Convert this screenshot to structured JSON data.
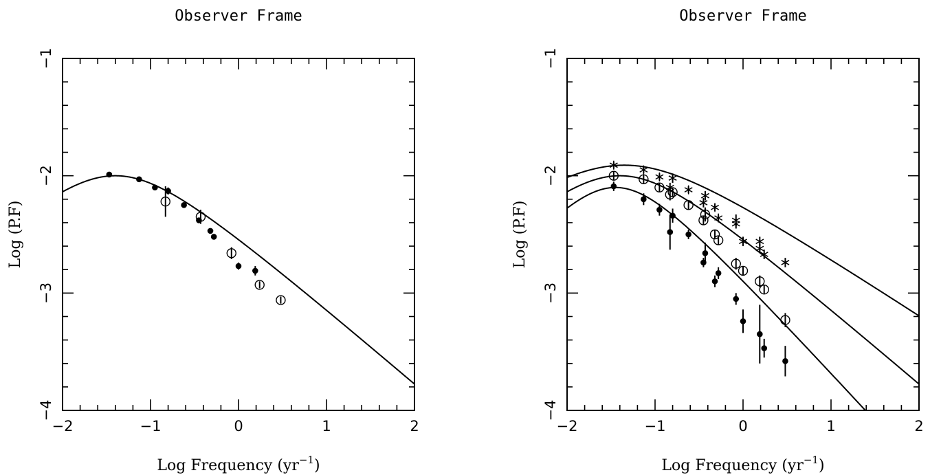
{
  "chart_data": [
    {
      "type": "scatter",
      "title": "Observer Frame",
      "xlabel_main": "Log Frequency (yr",
      "xlabel_sup": "−1",
      "xlabel_close": ")",
      "ylabel": "Log (P.F)",
      "xlim": [
        -2,
        2
      ],
      "ylim": [
        -4,
        -1
      ],
      "xticks": [
        -2,
        -1,
        0,
        1,
        2
      ],
      "xtick_labels": [
        "−2",
        "−1",
        "0",
        "1",
        "2"
      ],
      "yticks": [
        -4,
        -3,
        -2,
        -1
      ],
      "ytick_labels": [
        "−4",
        "−3",
        "−2",
        "−1"
      ],
      "grid": false,
      "series": [
        {
          "marker": "filled-circle",
          "points": [
            {
              "x": -1.47,
              "y": -1.99,
              "err": 0.02
            },
            {
              "x": -1.13,
              "y": -2.03,
              "err": 0.02
            },
            {
              "x": -0.95,
              "y": -2.1,
              "err": 0.02
            },
            {
              "x": -0.8,
              "y": -2.13,
              "err": 0.03
            },
            {
              "x": -0.62,
              "y": -2.25,
              "err": 0.02
            },
            {
              "x": -0.45,
              "y": -2.38,
              "err": 0.02
            },
            {
              "x": -0.32,
              "y": -2.47,
              "err": 0.02
            },
            {
              "x": -0.28,
              "y": -2.52,
              "err": 0.02
            },
            {
              "x": 0.0,
              "y": -2.77,
              "err": 0.03
            },
            {
              "x": 0.19,
              "y": -2.81,
              "err": 0.04
            }
          ]
        },
        {
          "marker": "open-circle",
          "points": [
            {
              "x": -0.83,
              "y": -2.22,
              "err": 0.13
            },
            {
              "x": -0.43,
              "y": -2.35,
              "err": 0.06
            },
            {
              "x": -0.08,
              "y": -2.66,
              "err": 0.05
            },
            {
              "x": 0.24,
              "y": -2.93,
              "err": 0.03
            },
            {
              "x": 0.48,
              "y": -3.06,
              "err": 0.03
            }
          ]
        }
      ],
      "curves": [
        {
          "logA": -2.0,
          "x0": -1.4,
          "sigma": 0.75,
          "slope": -1.3
        }
      ]
    },
    {
      "type": "scatter",
      "title": "Observer Frame",
      "xlabel_main": "Log Frequency (yr",
      "xlabel_sup": "−1",
      "xlabel_close": ")",
      "ylabel": "Log (P.F)",
      "xlim": [
        -2,
        2
      ],
      "ylim": [
        -4,
        -1
      ],
      "xticks": [
        -2,
        -1,
        0,
        1,
        2
      ],
      "xtick_labels": [
        "−2",
        "−1",
        "0",
        "1",
        "2"
      ],
      "yticks": [
        -4,
        -3,
        -2,
        -1
      ],
      "ytick_labels": [
        "−4",
        "−3",
        "−2",
        "−1"
      ],
      "grid": false,
      "series": [
        {
          "marker": "star",
          "points": [
            {
              "x": -1.47,
              "y": -1.91,
              "err": 0.03
            },
            {
              "x": -1.13,
              "y": -1.95,
              "err": 0.03
            },
            {
              "x": -0.95,
              "y": -2.01,
              "err": 0.03
            },
            {
              "x": -0.8,
              "y": -2.02,
              "err": 0.04
            },
            {
              "x": -0.83,
              "y": -2.1,
              "err": 0.04
            },
            {
              "x": -0.62,
              "y": -2.12,
              "err": 0.03
            },
            {
              "x": -0.45,
              "y": -2.23,
              "err": 0.04
            },
            {
              "x": -0.43,
              "y": -2.17,
              "err": 0.04
            },
            {
              "x": -0.32,
              "y": -2.27,
              "err": 0.03
            },
            {
              "x": -0.28,
              "y": -2.36,
              "err": 0.03
            },
            {
              "x": -0.08,
              "y": -2.38,
              "err": 0.05
            },
            {
              "x": -0.08,
              "y": -2.41,
              "err": 0.04
            },
            {
              "x": 0.0,
              "y": -2.56,
              "err": 0.04
            },
            {
              "x": 0.19,
              "y": -2.56,
              "err": 0.04
            },
            {
              "x": 0.19,
              "y": -2.62,
              "err": 0.04
            },
            {
              "x": 0.24,
              "y": -2.67,
              "err": 0.04
            },
            {
              "x": 0.48,
              "y": -2.74,
              "err": 0.04
            }
          ]
        },
        {
          "marker": "open-circle",
          "points": [
            {
              "x": -1.47,
              "y": -2.0,
              "err": 0.04
            },
            {
              "x": -1.13,
              "y": -2.03,
              "err": 0.04
            },
            {
              "x": -0.95,
              "y": -2.1,
              "err": 0.04
            },
            {
              "x": -0.83,
              "y": -2.16,
              "err": 0.05
            },
            {
              "x": -0.8,
              "y": -2.14,
              "err": 0.04
            },
            {
              "x": -0.62,
              "y": -2.25,
              "err": 0.04
            },
            {
              "x": -0.45,
              "y": -2.38,
              "err": 0.04
            },
            {
              "x": -0.43,
              "y": -2.33,
              "err": 0.06
            },
            {
              "x": -0.32,
              "y": -2.5,
              "err": 0.04
            },
            {
              "x": -0.28,
              "y": -2.55,
              "err": 0.04
            },
            {
              "x": -0.08,
              "y": -2.75,
              "err": 0.05
            },
            {
              "x": 0.0,
              "y": -2.81,
              "err": 0.04
            },
            {
              "x": 0.19,
              "y": -2.9,
              "err": 0.05
            },
            {
              "x": 0.24,
              "y": -2.97,
              "err": 0.04
            },
            {
              "x": 0.48,
              "y": -3.23,
              "err": 0.06
            }
          ]
        },
        {
          "marker": "filled-circle",
          "points": [
            {
              "x": -1.47,
              "y": -2.09,
              "err": 0.04
            },
            {
              "x": -1.13,
              "y": -2.2,
              "err": 0.05
            },
            {
              "x": -0.95,
              "y": -2.29,
              "err": 0.05
            },
            {
              "x": -0.83,
              "y": -2.48,
              "err": 0.15
            },
            {
              "x": -0.8,
              "y": -2.34,
              "err": 0.06
            },
            {
              "x": -0.62,
              "y": -2.5,
              "err": 0.04
            },
            {
              "x": -0.45,
              "y": -2.74,
              "err": 0.04
            },
            {
              "x": -0.43,
              "y": -2.66,
              "err": 0.09
            },
            {
              "x": -0.32,
              "y": -2.9,
              "err": 0.05
            },
            {
              "x": -0.28,
              "y": -2.83,
              "err": 0.05
            },
            {
              "x": -0.08,
              "y": -3.05,
              "err": 0.05
            },
            {
              "x": 0.0,
              "y": -3.24,
              "err": 0.1
            },
            {
              "x": 0.19,
              "y": -3.35,
              "err": 0.25
            },
            {
              "x": 0.24,
              "y": -3.47,
              "err": 0.08
            },
            {
              "x": 0.48,
              "y": -3.58,
              "err": 0.13
            }
          ]
        }
      ],
      "curves": [
        {
          "logA": -1.91,
          "x0": -1.35,
          "sigma": 0.9,
          "slope": -1.0
        },
        {
          "logA": -2.0,
          "x0": -1.4,
          "sigma": 0.75,
          "slope": -1.3
        },
        {
          "logA": -2.1,
          "x0": -1.45,
          "sigma": 0.6,
          "slope": -1.65
        }
      ]
    }
  ]
}
